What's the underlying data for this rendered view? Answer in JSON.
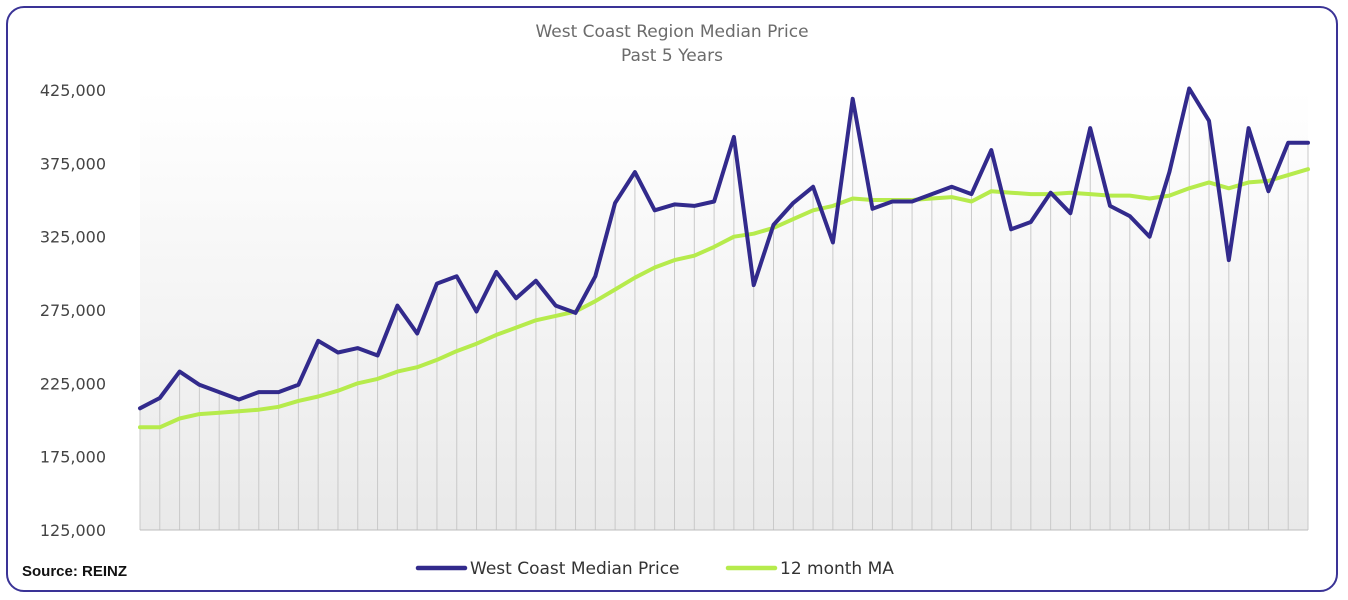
{
  "colors": {
    "frame": "#3a3396",
    "series_primary": "#322a8c",
    "series_ma": "#b6eb4c",
    "drop_lines": "#c9c9c9"
  },
  "footer": {
    "source": "Source: REINZ"
  },
  "chart_data": {
    "type": "line",
    "title": "West Coast Region Median Price",
    "subtitle": "Past 5 Years",
    "xlabel": "",
    "ylabel": "",
    "ylim": [
      125000,
      425000
    ],
    "yticks": [
      125000,
      175000,
      225000,
      275000,
      325000,
      375000,
      425000
    ],
    "ytick_labels": [
      "125,000",
      "175,000",
      "225,000",
      "275,000",
      "325,000",
      "375,000",
      "425,000"
    ],
    "grid": false,
    "drop_lines": true,
    "legend_position": "bottom",
    "x": [
      1,
      2,
      3,
      4,
      5,
      6,
      7,
      8,
      9,
      10,
      11,
      12,
      13,
      14,
      15,
      16,
      17,
      18,
      19,
      20,
      21,
      22,
      23,
      24,
      25,
      26,
      27,
      28,
      29,
      30,
      31,
      32,
      33,
      34,
      35,
      36,
      37,
      38,
      39,
      40,
      41,
      42,
      43,
      44,
      45,
      46,
      47,
      48,
      49,
      50,
      51,
      52,
      53,
      54,
      55,
      56,
      57,
      58,
      59,
      60
    ],
    "series": [
      {
        "name": "West Coast Median Price",
        "values": [
          208000,
          215000,
          233000,
          224000,
          219000,
          214000,
          219000,
          219000,
          224000,
          254000,
          246000,
          249000,
          244000,
          278000,
          259000,
          293000,
          298000,
          274000,
          301000,
          283000,
          295000,
          278000,
          273000,
          298000,
          348000,
          369000,
          343000,
          347000,
          346000,
          349000,
          393000,
          292000,
          333000,
          348000,
          359000,
          321000,
          419000,
          344000,
          349000,
          349000,
          354000,
          359000,
          354000,
          384000,
          330000,
          335000,
          355000,
          341000,
          399000,
          346000,
          339000,
          325000,
          369000,
          426000,
          404000,
          309000,
          399000,
          356000,
          389000,
          389000
        ]
      },
      {
        "name": "12 month MA",
        "values": [
          195000,
          195000,
          201000,
          204000,
          205000,
          206000,
          207000,
          209000,
          213000,
          216000,
          220000,
          225000,
          228000,
          233000,
          236000,
          241000,
          247000,
          252000,
          258000,
          263000,
          268000,
          271000,
          274000,
          281000,
          289000,
          297000,
          304000,
          309000,
          312000,
          318000,
          325000,
          327000,
          331000,
          337000,
          343000,
          346000,
          351000,
          350000,
          350000,
          350000,
          351000,
          352000,
          349000,
          356000,
          355000,
          354000,
          354000,
          355000,
          354000,
          353000,
          353000,
          351000,
          353000,
          358000,
          362000,
          358000,
          362000,
          363000,
          367000,
          371000
        ]
      }
    ]
  }
}
